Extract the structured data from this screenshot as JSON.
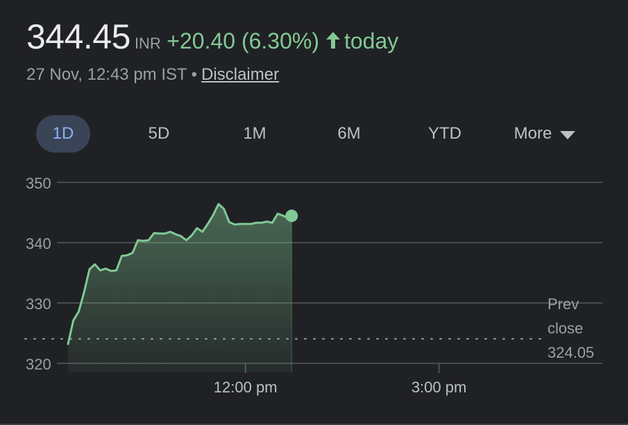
{
  "quote": {
    "price": "344.45",
    "currency": "INR",
    "change": "+20.40 (6.30%)",
    "period": "today",
    "timestamp": "27 Nov, 12:43 pm IST",
    "separator": "•",
    "disclaimer_label": "Disclaimer"
  },
  "range_tabs": [
    {
      "label": "1D",
      "active": true
    },
    {
      "label": "5D",
      "active": false
    },
    {
      "label": "1M",
      "active": false
    },
    {
      "label": "6M",
      "active": false
    },
    {
      "label": "YTD",
      "active": false
    },
    {
      "label": "More",
      "active": false
    }
  ],
  "icons": {
    "change_direction": "arrow-up-icon",
    "more_dropdown": "caret-down-icon"
  },
  "colors": {
    "positive": "#81c995",
    "grid": "#5f6368",
    "active_tab_bg": "#394457",
    "active_tab_text": "#8ab4f8"
  },
  "chart_data": {
    "type": "area",
    "y_ticks": [
      320,
      330,
      340,
      350
    ],
    "ylim": [
      320,
      350
    ],
    "x_tick_labels": [
      "12:00 pm",
      "3:00 pm"
    ],
    "prev_close": {
      "label_line1": "Prev",
      "label_line2": "close",
      "value": "324.05",
      "y": 324.05
    },
    "grid": true,
    "x": [
      "09:15",
      "09:20",
      "09:25",
      "09:30",
      "09:35",
      "09:40",
      "09:45",
      "09:50",
      "09:55",
      "10:00",
      "10:05",
      "10:10",
      "10:15",
      "10:20",
      "10:25",
      "10:30",
      "10:35",
      "10:40",
      "10:45",
      "10:50",
      "10:55",
      "11:00",
      "11:05",
      "11:10",
      "11:15",
      "11:20",
      "11:25",
      "11:30",
      "11:35",
      "11:40",
      "11:45",
      "11:50",
      "11:55",
      "12:00",
      "12:05",
      "12:10",
      "12:15",
      "12:20",
      "12:25",
      "12:30",
      "12:35",
      "12:40",
      "12:43"
    ],
    "values": [
      323.2,
      327.1,
      328.6,
      331.8,
      335.6,
      336.4,
      335.4,
      335.7,
      335.3,
      335.4,
      337.8,
      337.9,
      338.3,
      340.4,
      340.3,
      340.4,
      341.6,
      341.5,
      341.5,
      341.8,
      341.4,
      341.1,
      340.4,
      341.2,
      342.4,
      341.8,
      343.1,
      344.6,
      346.4,
      345.6,
      343.4,
      343.0,
      343.1,
      343.1,
      343.1,
      343.3,
      343.3,
      343.5,
      343.3,
      344.8,
      344.5,
      344.0,
      344.45
    ]
  }
}
